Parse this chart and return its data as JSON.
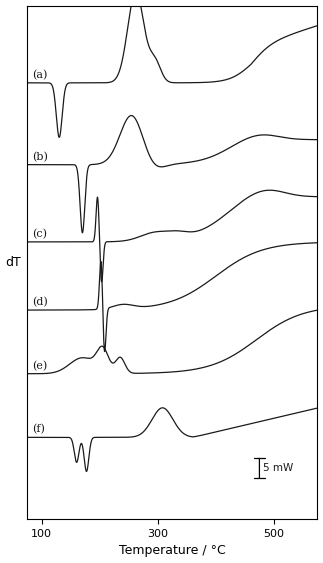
{
  "xlabel": "Temperature / °C",
  "ylabel": "dT",
  "xlim": [
    75,
    575
  ],
  "ylim": [
    -1.8,
    9.5
  ],
  "x_ticks": [
    100,
    300,
    500
  ],
  "background_color": "#ffffff",
  "line_color": "#1a1a1a",
  "label_fontsize": 8,
  "curve_labels": [
    "(a)",
    "(b)",
    "(c)",
    "(d)",
    "(e)",
    "(f)"
  ],
  "offsets": [
    7.8,
    6.0,
    4.3,
    2.8,
    1.4,
    0.0
  ],
  "scale_bar_label": "5 mW"
}
